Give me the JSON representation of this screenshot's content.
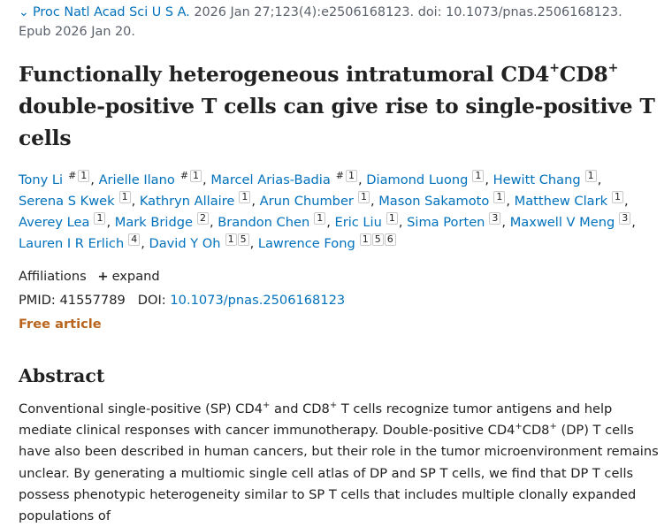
{
  "citation": {
    "journal": "Proc Natl Acad Sci U S A.",
    "details": "2026 Jan 27;123(4):e2506168123. doi: 10.1073/pnas.2506168123.",
    "epub": "Epub 2026 Jan 20."
  },
  "title": {
    "part1": "Functionally heterogeneous intratumoral CD4",
    "sup1": "+",
    "part2": "CD8",
    "sup2": "+",
    "part3": " double-positive T cells can give rise to single-positive T cells"
  },
  "authors": [
    {
      "name": "Tony Li",
      "marks": [
        "#",
        "1"
      ]
    },
    {
      "name": "Arielle Ilano",
      "marks": [
        "#",
        "1"
      ]
    },
    {
      "name": "Marcel Arias-Badia",
      "marks": [
        "#",
        "1"
      ]
    },
    {
      "name": "Diamond Luong",
      "marks": [
        "1"
      ]
    },
    {
      "name": "Hewitt Chang",
      "marks": [
        "1"
      ]
    },
    {
      "name": "Serena S Kwek",
      "marks": [
        "1"
      ]
    },
    {
      "name": "Kathryn Allaire",
      "marks": [
        "1"
      ]
    },
    {
      "name": "Arun Chumber",
      "marks": [
        "1"
      ]
    },
    {
      "name": "Mason Sakamoto",
      "marks": [
        "1"
      ]
    },
    {
      "name": "Matthew Clark",
      "marks": [
        "1"
      ]
    },
    {
      "name": "Averey Lea",
      "marks": [
        "1"
      ]
    },
    {
      "name": "Mark Bridge",
      "marks": [
        "2"
      ]
    },
    {
      "name": "Brandon Chen",
      "marks": [
        "1"
      ]
    },
    {
      "name": "Eric Liu",
      "marks": [
        "1"
      ]
    },
    {
      "name": "Sima Porten",
      "marks": [
        "3"
      ]
    },
    {
      "name": "Maxwell V Meng",
      "marks": [
        "3"
      ]
    },
    {
      "name": "Lauren I R Erlich",
      "marks": [
        "4"
      ]
    },
    {
      "name": "David Y Oh",
      "marks": [
        "1",
        "5"
      ]
    },
    {
      "name": "Lawrence Fong",
      "marks": [
        "1",
        "5",
        "6"
      ]
    }
  ],
  "affiliations": {
    "label": "Affiliations",
    "expand_label": "expand",
    "expand_icon": "+"
  },
  "ids": {
    "pmid_label": "PMID:",
    "pmid": "41557789",
    "doi_label": "DOI:",
    "doi": "10.1073/pnas.2506168123"
  },
  "free_article": "Free article",
  "abstract": {
    "heading": "Abstract",
    "t1": "Conventional single-positive (SP) CD4",
    "s1": "+",
    "t2": " and CD8",
    "s2": "+",
    "t3": " T cells recognize tumor antigens and help mediate clinical responses with cancer immunotherapy. Double-positive CD4",
    "s3": "+",
    "t4": "CD8",
    "s4": "+",
    "t5": " (DP) T cells have also been described in human cancers, but their role in the tumor microenvironment remains unclear. By generating a multiomic single cell atlas of DP and SP T cells, we find that DP T cells possess phenotypic heterogeneity similar to SP T cells that includes multiple clonally expanded populations of"
  },
  "colors": {
    "link": "#0071bc",
    "text": "#212121",
    "muted": "#5b616b",
    "free": "#b8641c"
  }
}
